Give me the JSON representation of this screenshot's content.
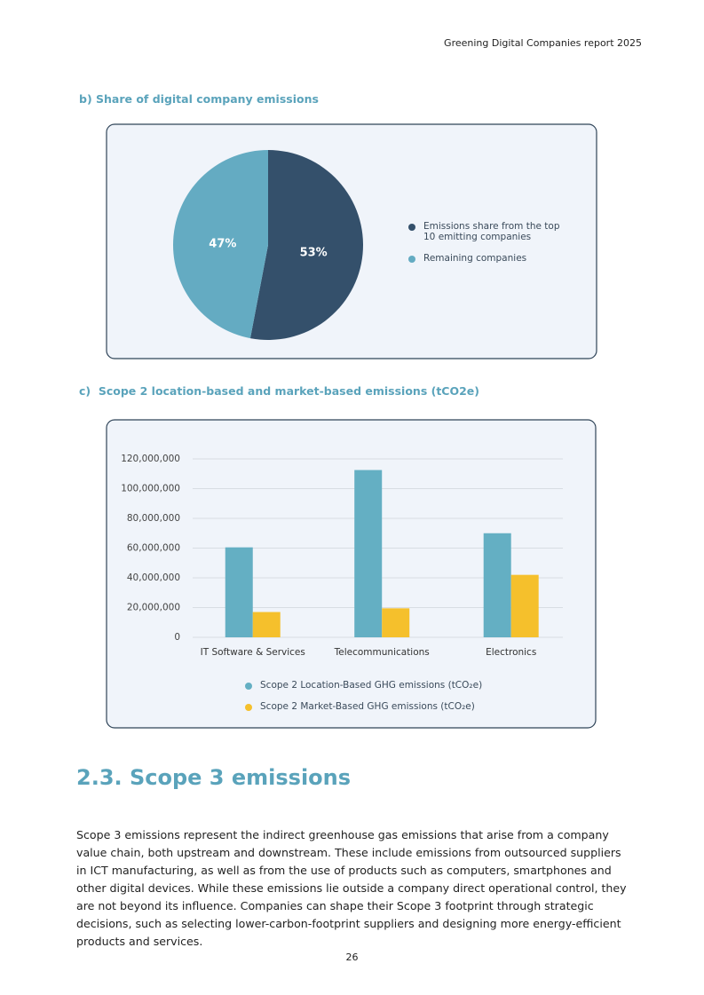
{
  "header": {
    "title": "Greening Digital Companies report 2025"
  },
  "chart_data": [
    {
      "type": "pie",
      "title": "b) Share of digital company emissions",
      "categories": [
        "Emissions share from the top 10 emitting companies",
        "Remaining companies"
      ],
      "values": [
        53,
        47
      ],
      "value_labels": [
        "53%",
        "47%"
      ],
      "colors": [
        "#34506b",
        "#64abc2"
      ]
    },
    {
      "type": "bar",
      "title": "c)  Scope 2 location-based and market-based emissions (tCO2e)",
      "categories": [
        "IT Software & Services",
        "Telecommunications",
        "Electronics"
      ],
      "series": [
        {
          "name": "Scope 2 Location-Based GHG emissions (tCO₂e)",
          "color": "#64afc3",
          "values": [
            60500000,
            112500000,
            70000000
          ]
        },
        {
          "name": "Scope 2 Market-Based GHG emissions (tCO₂e)",
          "color": "#f5c02c",
          "values": [
            17000000,
            19500000,
            42000000
          ]
        }
      ],
      "ylim": [
        0,
        120000000
      ],
      "yticks": [
        0,
        {
          "value": 20000000,
          "label": "20,000,000"
        },
        {
          "value": 40000000,
          "label": "40,000,000"
        },
        {
          "value": 60000000,
          "label": "60,000,000"
        },
        {
          "value": 80000000,
          "label": "80,000,000"
        },
        {
          "value": 100000000,
          "label": "100,000,000"
        },
        {
          "value": 120000000,
          "label": "120,000,000"
        }
      ],
      "grid": true
    }
  ],
  "section": {
    "heading": "2.3. Scope 3 emissions",
    "paragraph": "Scope 3 emissions represent the indirect greenhouse gas emissions that arise from a company value chain, both upstream and downstream. These include emissions from outsourced suppliers in ICT manufacturing, as well as from the use of products such as computers, smartphones and other digital devices. While these emissions lie outside a company direct operational control, they are not beyond its influence. Companies can shape their Scope 3 footprint through strategic decisions, such as selecting lower-carbon-footprint suppliers and designing more energy-efficient products and services."
  },
  "footer": {
    "page_number": "26"
  }
}
